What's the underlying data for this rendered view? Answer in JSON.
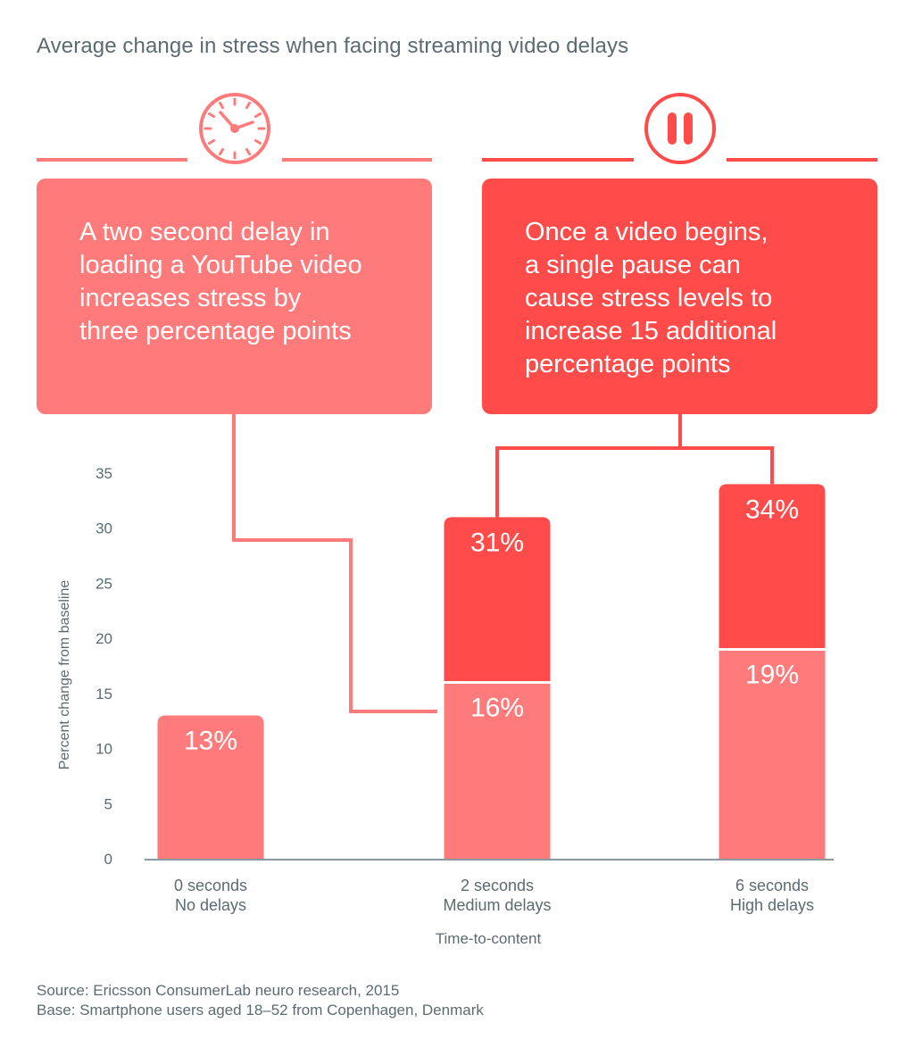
{
  "title": "Average change in stress when facing streaming video delays",
  "callouts": {
    "left": {
      "lines": [
        "A two second delay in",
        "loading a YouTube video",
        "increases stress by",
        "three percentage points"
      ],
      "icon": "clock-icon"
    },
    "right": {
      "lines": [
        "Once a video begins,",
        "a single pause can",
        "cause stress levels to",
        "increase 15 additional",
        "percentage points"
      ],
      "icon": "pause-icon"
    }
  },
  "colors": {
    "light_red": "#ff7b7b",
    "dark_red": "#ff4c4a",
    "axis_text": "#5b6b72",
    "axis_line": "#8a9aa3"
  },
  "chart_data": {
    "type": "bar",
    "stacked": true,
    "categories": [
      [
        "0 seconds",
        "No delays"
      ],
      [
        "2 seconds",
        "Medium delays"
      ],
      [
        "6 seconds",
        "High delays"
      ]
    ],
    "series": [
      {
        "values": [
          13,
          16,
          19
        ],
        "labels": [
          "13%",
          "16%",
          "19%"
        ],
        "color": "#ff7b7b"
      },
      {
        "values": [
          0,
          15,
          15
        ],
        "labels": [
          "",
          "31%",
          "34%"
        ],
        "color": "#ff4c4a"
      }
    ],
    "totals": [
      13,
      31,
      34
    ],
    "xlabel": "Time-to-content",
    "ylabel": "Percent change from baseline",
    "yticks": [
      0,
      5,
      10,
      15,
      20,
      25,
      30,
      35
    ],
    "ylim": [
      0,
      35
    ],
    "grid": false,
    "legend": "none"
  },
  "source": {
    "line1": "Source: Ericsson ConsumerLab neuro research, 2015",
    "line2": "Base: Smartphone users aged 18–52 from Copenhagen, Denmark"
  }
}
